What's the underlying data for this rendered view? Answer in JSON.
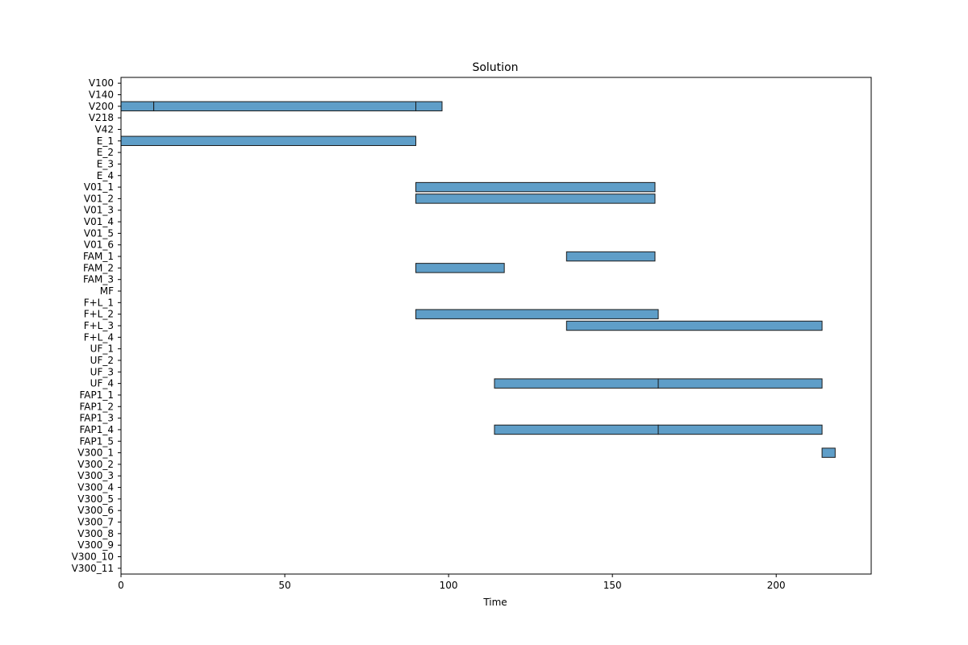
{
  "chart_data": {
    "type": "bar",
    "orientation": "horizontal-gantt",
    "title": "Solution",
    "xlabel": "Time",
    "ylabel": "",
    "xlim": [
      0,
      229
    ],
    "xticks": [
      0,
      50,
      100,
      150,
      200
    ],
    "grid": false,
    "bar_color": "#5f9ec8",
    "edge_color": "#1a1a1a",
    "categories": [
      "V100",
      "V140",
      "V200",
      "V218",
      "V42",
      "E_1",
      "E_2",
      "E_3",
      "E_4",
      "V01_1",
      "V01_2",
      "V01_3",
      "V01_4",
      "V01_5",
      "V01_6",
      "FAM_1",
      "FAM_2",
      "FAM_3",
      "MF",
      "F+L_1",
      "F+L_2",
      "F+L_3",
      "F+L_4",
      "UF_1",
      "UF_2",
      "UF_3",
      "UF_4",
      "FAP1_1",
      "FAP1_2",
      "FAP1_3",
      "FAP1_4",
      "FAP1_5",
      "V300_1",
      "V300_2",
      "V300_3",
      "V300_4",
      "V300_5",
      "V300_6",
      "V300_7",
      "V300_8",
      "V300_9",
      "V300_10",
      "V300_11"
    ],
    "tasks": [
      {
        "resource": "V200",
        "start": 0,
        "end": 10
      },
      {
        "resource": "V200",
        "start": 10,
        "end": 90
      },
      {
        "resource": "V200",
        "start": 90,
        "end": 98
      },
      {
        "resource": "E_1",
        "start": 0,
        "end": 90
      },
      {
        "resource": "V01_1",
        "start": 90,
        "end": 163
      },
      {
        "resource": "V01_2",
        "start": 90,
        "end": 163
      },
      {
        "resource": "FAM_1",
        "start": 136,
        "end": 163
      },
      {
        "resource": "FAM_2",
        "start": 90,
        "end": 117
      },
      {
        "resource": "F+L_2",
        "start": 90,
        "end": 164
      },
      {
        "resource": "F+L_3",
        "start": 136,
        "end": 214
      },
      {
        "resource": "UF_4",
        "start": 114,
        "end": 164
      },
      {
        "resource": "UF_4",
        "start": 164,
        "end": 214
      },
      {
        "resource": "FAP1_4",
        "start": 114,
        "end": 164
      },
      {
        "resource": "FAP1_4",
        "start": 164,
        "end": 214
      },
      {
        "resource": "V300_1",
        "start": 214,
        "end": 218
      }
    ]
  }
}
